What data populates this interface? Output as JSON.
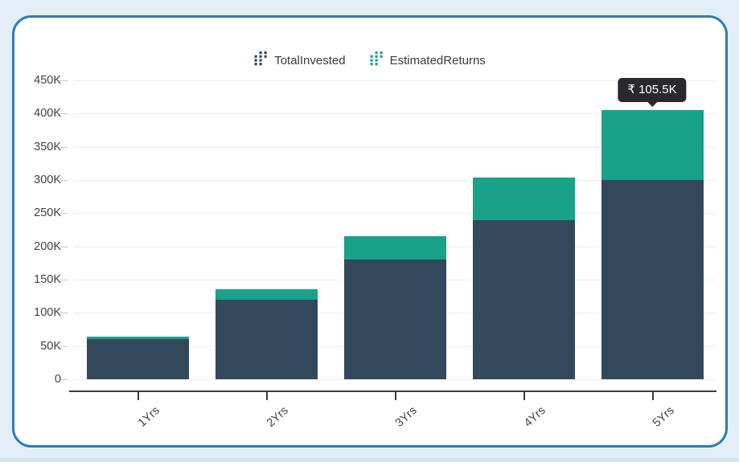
{
  "tooltip": {
    "text": "₹ 105.5K"
  },
  "chart_data": {
    "type": "bar",
    "stacked": true,
    "categories": [
      "1Yrs",
      "2Yrs",
      "3Yrs",
      "4Yrs",
      "5Yrs"
    ],
    "series": [
      {
        "name": "TotalInvested",
        "color": "#33485d",
        "values": [
          60,
          120,
          180,
          240,
          300
        ]
      },
      {
        "name": "EstimatedReturns",
        "color": "#19a189",
        "values": [
          4,
          16,
          35,
          63.5,
          105.5
        ]
      }
    ],
    "unit": "K",
    "ylim": [
      0,
      450
    ],
    "y_ticks": [
      {
        "value": 0,
        "label": "0"
      },
      {
        "value": 50,
        "label": "50K"
      },
      {
        "value": 100,
        "label": "100K"
      },
      {
        "value": 150,
        "label": "150K"
      },
      {
        "value": 200,
        "label": "200K"
      },
      {
        "value": 250,
        "label": "250K"
      },
      {
        "value": 300,
        "label": "300K"
      },
      {
        "value": 350,
        "label": "350K"
      },
      {
        "value": 400,
        "label": "400K"
      },
      {
        "value": 450,
        "label": "450K"
      }
    ],
    "grid": true,
    "legend_position": "top",
    "tooltip": {
      "text": "₹ 105.5K",
      "category_index": 4,
      "series": "EstimatedReturns"
    }
  },
  "colors": {
    "card_border": "#2e7cb8",
    "page_background": "#e4eef8",
    "tooltip_background": "#29292d",
    "axis_text": "#3f3f46"
  }
}
